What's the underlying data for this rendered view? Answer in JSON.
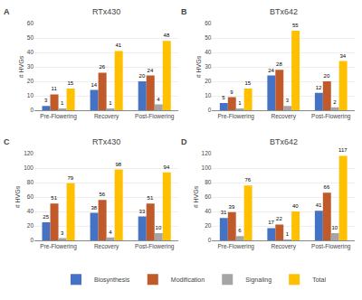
{
  "chart_data": [
    {
      "type": "bar",
      "title": "RTx430",
      "annotations": [
        "A"
      ],
      "ylabel": "# HVGs",
      "categories": [
        "Pre-Flowering",
        "Recovery",
        "Post-Flowering"
      ],
      "series": [
        {
          "name": "Biosynthesis",
          "color": "#4472C4",
          "values": [
            3,
            14,
            20
          ]
        },
        {
          "name": "Modification",
          "color": "#C05A2A",
          "values": [
            11,
            26,
            24
          ]
        },
        {
          "name": "Signaling",
          "color": "#A5A5A5",
          "values": [
            1,
            1,
            4
          ]
        },
        {
          "name": "Total",
          "color": "#FFC000",
          "values": [
            15,
            41,
            48
          ]
        }
      ],
      "ylim": [
        0,
        60
      ],
      "yticks": [
        0,
        10,
        20,
        30,
        40,
        50,
        60
      ],
      "grid": true,
      "data_labels": true,
      "legend": "lower center"
    },
    {
      "type": "bar",
      "title": "BTx642",
      "annotations": [
        "B"
      ],
      "ylabel": "# HVGs",
      "categories": [
        "Pre-Flowering",
        "Recovery",
        "Post-Flowering"
      ],
      "series": [
        {
          "name": "Biosynthesis",
          "color": "#4472C4",
          "values": [
            5,
            24,
            12
          ]
        },
        {
          "name": "Modification",
          "color": "#C05A2A",
          "values": [
            9,
            28,
            20
          ]
        },
        {
          "name": "Signaling",
          "color": "#A5A5A5",
          "values": [
            1,
            3,
            2
          ]
        },
        {
          "name": "Total",
          "color": "#FFC000",
          "values": [
            15,
            55,
            34
          ]
        }
      ],
      "ylim": [
        0,
        60
      ],
      "yticks": [
        0,
        10,
        20,
        30,
        40,
        50,
        60
      ],
      "grid": true,
      "data_labels": true
    },
    {
      "type": "bar",
      "title": "RTx430",
      "annotations": [
        "C"
      ],
      "ylabel": "# HVGs",
      "categories": [
        "Pre-Flowering",
        "Recovery",
        "Post-Flowering"
      ],
      "series": [
        {
          "name": "Biosynthesis",
          "color": "#4472C4",
          "values": [
            25,
            38,
            33
          ]
        },
        {
          "name": "Modification",
          "color": "#C05A2A",
          "values": [
            51,
            56,
            51
          ]
        },
        {
          "name": "Signaling",
          "color": "#A5A5A5",
          "values": [
            3,
            4,
            10
          ]
        },
        {
          "name": "Total",
          "color": "#FFC000",
          "values": [
            79,
            98,
            94
          ]
        }
      ],
      "ylim": [
        0,
        120
      ],
      "yticks": [
        0,
        20,
        40,
        60,
        80,
        100,
        120
      ],
      "grid": true,
      "data_labels": true
    },
    {
      "type": "bar",
      "title": "BTx642",
      "annotations": [
        "D"
      ],
      "ylabel": "# HVGs",
      "categories": [
        "Pre-Flowering",
        "Recovery",
        "Post-Flowering"
      ],
      "series": [
        {
          "name": "Biosynthesis",
          "color": "#4472C4",
          "values": [
            31,
            17,
            41
          ]
        },
        {
          "name": "Modification",
          "color": "#C05A2A",
          "values": [
            39,
            22,
            66
          ]
        },
        {
          "name": "Signaling",
          "color": "#A5A5A5",
          "values": [
            6,
            1,
            10
          ]
        },
        {
          "name": "Total",
          "color": "#FFC000",
          "values": [
            76,
            40,
            117
          ]
        }
      ],
      "ylim": [
        0,
        120
      ],
      "yticks": [
        0,
        20,
        40,
        60,
        80,
        100,
        120
      ],
      "grid": true,
      "data_labels": true
    }
  ]
}
